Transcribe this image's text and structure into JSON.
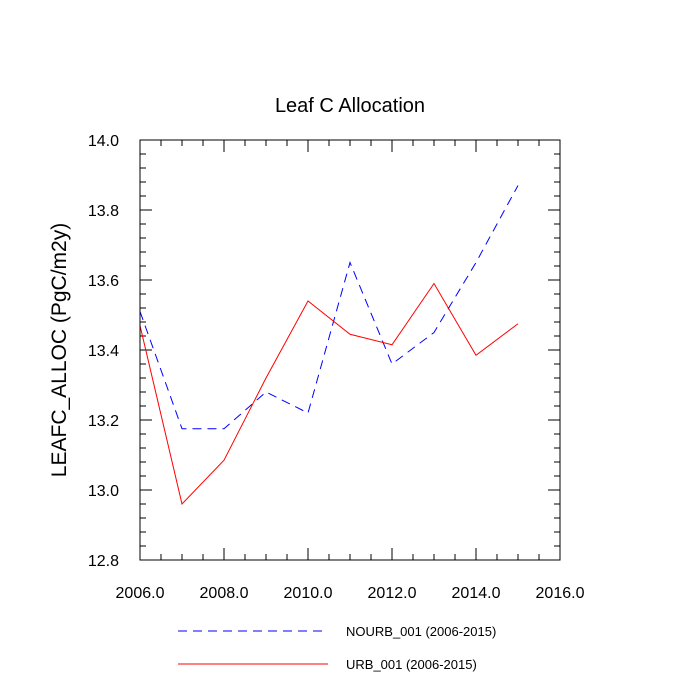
{
  "chart_data": {
    "type": "line",
    "title": "Leaf C Allocation",
    "xlabel": "",
    "ylabel": "LEAFC_ALLOC  (PgC/m2y)",
    "xlim": [
      2006,
      2016
    ],
    "ylim": [
      12.8,
      14.0
    ],
    "x_major_ticks": [
      2006,
      2008,
      2010,
      2012,
      2014,
      2016
    ],
    "x_tick_labels": [
      "2006.0",
      "2008.0",
      "2010.0",
      "2012.0",
      "2014.0",
      "2016.0"
    ],
    "x_minor_step": 0.5,
    "y_major_ticks": [
      12.8,
      13.0,
      13.2,
      13.4,
      13.6,
      13.8,
      14.0
    ],
    "y_tick_labels": [
      "12.8",
      "13.0",
      "13.2",
      "13.4",
      "13.6",
      "13.8",
      "14.0"
    ],
    "y_minor_step": 0.04,
    "grid": false,
    "legend_position": "bottom",
    "x": [
      2006,
      2007,
      2008,
      2009,
      2010,
      2011,
      2012,
      2013,
      2014,
      2015
    ],
    "series": [
      {
        "name": "NOURB_001 (2006-2015)",
        "color": "#0000ff",
        "style": "dashed",
        "values": [
          13.51,
          13.175,
          13.175,
          13.28,
          13.22,
          13.65,
          13.36,
          13.45,
          13.65,
          13.87
        ]
      },
      {
        "name": "URB_001 (2006-2015)",
        "color": "#ff0000",
        "style": "solid",
        "values": [
          13.47,
          12.96,
          13.085,
          13.32,
          13.54,
          13.445,
          13.415,
          13.59,
          13.385,
          13.475
        ]
      }
    ]
  }
}
